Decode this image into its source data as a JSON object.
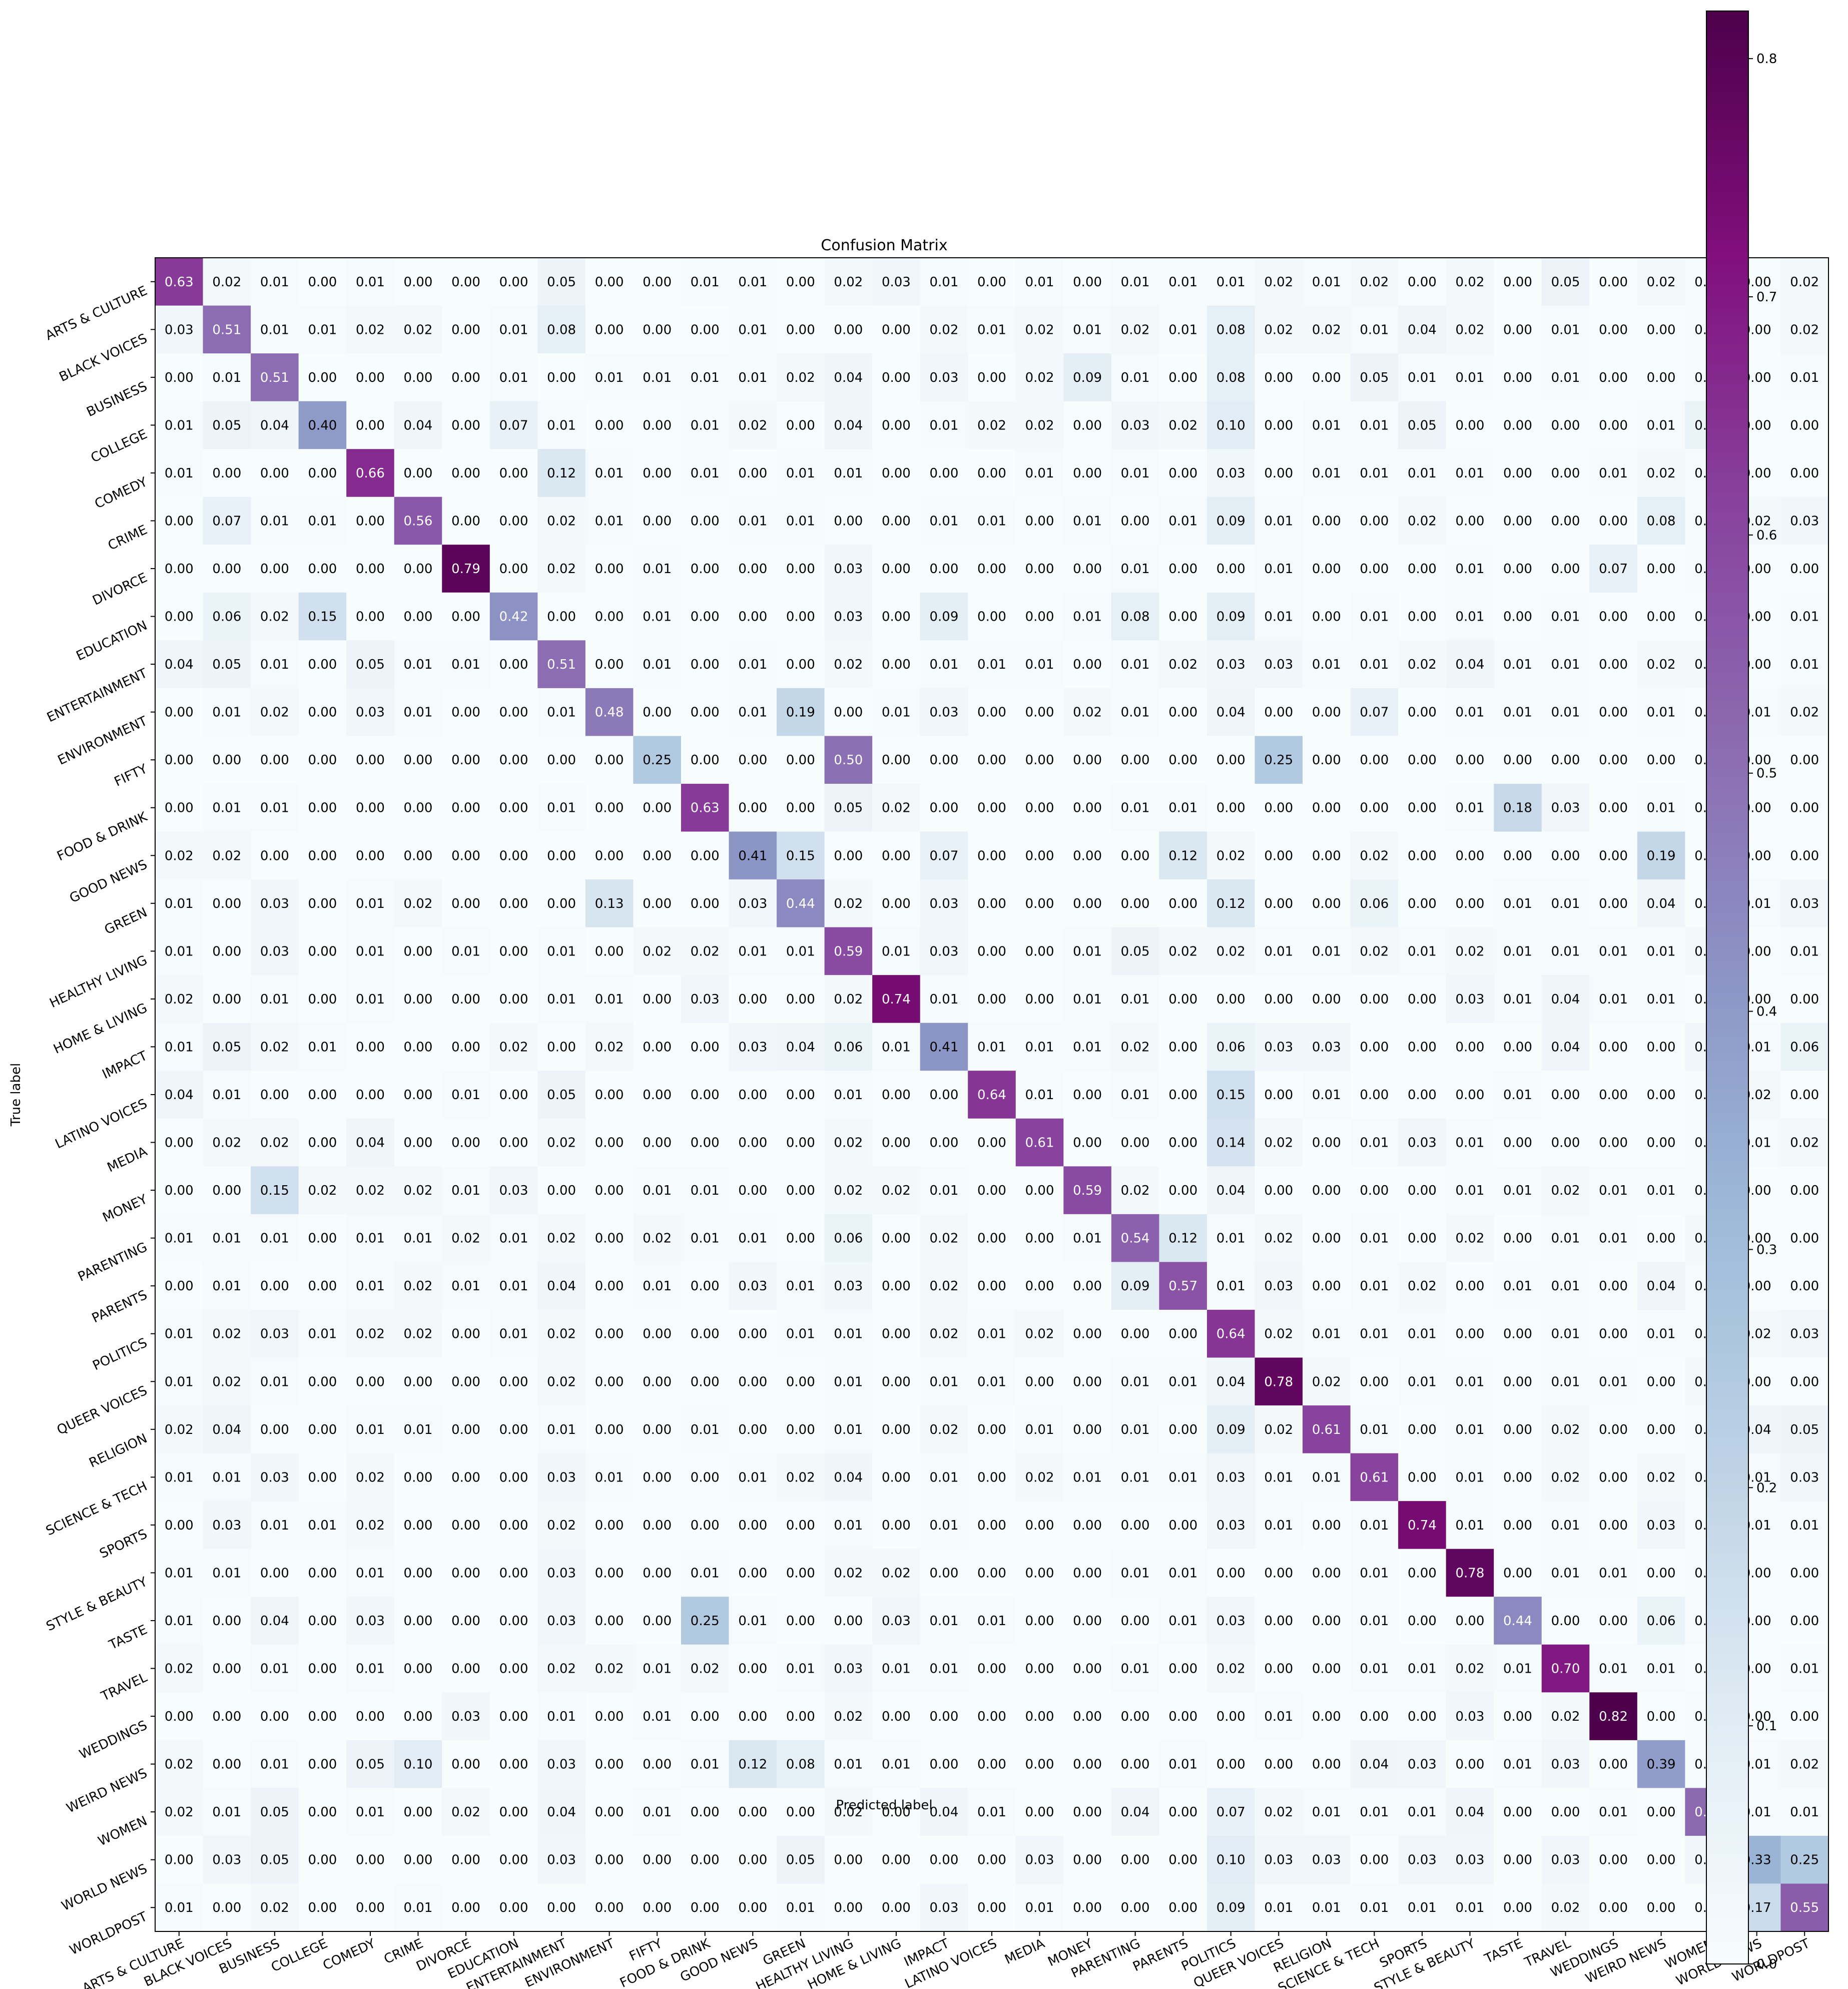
{
  "chart_data": {
    "type": "heatmap",
    "title": "Confusion Matrix",
    "xlabel": "Predicted label",
    "ylabel": "True label",
    "categories": [
      "ARTS & CULTURE",
      "BLACK VOICES",
      "BUSINESS",
      "COLLEGE",
      "COMEDY",
      "CRIME",
      "DIVORCE",
      "EDUCATION",
      "ENTERTAINMENT",
      "ENVIRONMENT",
      "FIFTY",
      "FOOD & DRINK",
      "GOOD NEWS",
      "GREEN",
      "HEALTHY LIVING",
      "HOME & LIVING",
      "IMPACT",
      "LATINO VOICES",
      "MEDIA",
      "MONEY",
      "PARENTING",
      "PARENTS",
      "POLITICS",
      "QUEER VOICES",
      "RELIGION",
      "SCIENCE & TECH",
      "SPORTS",
      "STYLE & BEAUTY",
      "TASTE",
      "TRAVEL",
      "WEDDINGS",
      "WEIRD NEWS",
      "WOMEN",
      "WORLD NEWS",
      "WORLDPOST"
    ],
    "matrix": [
      [
        0.63,
        0.02,
        0.01,
        0.0,
        0.01,
        0.0,
        0.0,
        0.0,
        0.05,
        0.0,
        0.0,
        0.01,
        0.01,
        0.0,
        0.02,
        0.03,
        0.01,
        0.0,
        0.01,
        0.0,
        0.01,
        0.01,
        0.01,
        0.02,
        0.01,
        0.02,
        0.0,
        0.02,
        0.0,
        0.05,
        0.0,
        0.02,
        0.01,
        0.0,
        0.02
      ],
      [
        0.03,
        0.51,
        0.01,
        0.01,
        0.02,
        0.02,
        0.0,
        0.01,
        0.08,
        0.0,
        0.0,
        0.0,
        0.01,
        0.0,
        0.0,
        0.0,
        0.02,
        0.01,
        0.02,
        0.01,
        0.02,
        0.01,
        0.08,
        0.02,
        0.02,
        0.01,
        0.04,
        0.02,
        0.0,
        0.01,
        0.0,
        0.0,
        0.01,
        0.0,
        0.02
      ],
      [
        0.0,
        0.01,
        0.51,
        0.0,
        0.0,
        0.0,
        0.0,
        0.01,
        0.0,
        0.01,
        0.01,
        0.01,
        0.01,
        0.02,
        0.04,
        0.0,
        0.03,
        0.0,
        0.02,
        0.09,
        0.01,
        0.0,
        0.08,
        0.0,
        0.0,
        0.05,
        0.01,
        0.01,
        0.0,
        0.01,
        0.0,
        0.0,
        0.01,
        0.0,
        0.01
      ],
      [
        0.01,
        0.05,
        0.04,
        0.4,
        0.0,
        0.04,
        0.0,
        0.07,
        0.01,
        0.0,
        0.0,
        0.01,
        0.02,
        0.0,
        0.04,
        0.0,
        0.01,
        0.02,
        0.02,
        0.0,
        0.03,
        0.02,
        0.1,
        0.0,
        0.01,
        0.01,
        0.05,
        0.0,
        0.0,
        0.0,
        0.0,
        0.01,
        0.06,
        0.0,
        0.0
      ],
      [
        0.01,
        0.0,
        0.0,
        0.0,
        0.66,
        0.0,
        0.0,
        0.0,
        0.12,
        0.01,
        0.0,
        0.01,
        0.0,
        0.01,
        0.01,
        0.0,
        0.0,
        0.0,
        0.01,
        0.0,
        0.01,
        0.0,
        0.03,
        0.0,
        0.01,
        0.01,
        0.01,
        0.01,
        0.0,
        0.0,
        0.01,
        0.02,
        0.01,
        0.0,
        0.0
      ],
      [
        0.0,
        0.07,
        0.01,
        0.01,
        0.0,
        0.56,
        0.0,
        0.0,
        0.02,
        0.01,
        0.0,
        0.0,
        0.01,
        0.01,
        0.0,
        0.0,
        0.01,
        0.01,
        0.0,
        0.01,
        0.0,
        0.01,
        0.09,
        0.01,
        0.0,
        0.0,
        0.02,
        0.0,
        0.0,
        0.0,
        0.0,
        0.08,
        0.01,
        0.02,
        0.03
      ],
      [
        0.0,
        0.0,
        0.0,
        0.0,
        0.0,
        0.0,
        0.79,
        0.0,
        0.02,
        0.0,
        0.01,
        0.0,
        0.0,
        0.0,
        0.03,
        0.0,
        0.0,
        0.0,
        0.0,
        0.0,
        0.01,
        0.0,
        0.0,
        0.01,
        0.0,
        0.0,
        0.0,
        0.01,
        0.0,
        0.0,
        0.07,
        0.0,
        0.01,
        0.0,
        0.0
      ],
      [
        0.0,
        0.06,
        0.02,
        0.15,
        0.0,
        0.0,
        0.0,
        0.42,
        0.0,
        0.0,
        0.01,
        0.0,
        0.0,
        0.0,
        0.03,
        0.0,
        0.09,
        0.0,
        0.0,
        0.01,
        0.08,
        0.0,
        0.09,
        0.01,
        0.0,
        0.01,
        0.0,
        0.01,
        0.0,
        0.01,
        0.0,
        0.0,
        0.0,
        0.0,
        0.01
      ],
      [
        0.04,
        0.05,
        0.01,
        0.0,
        0.05,
        0.01,
        0.01,
        0.0,
        0.51,
        0.0,
        0.01,
        0.0,
        0.01,
        0.0,
        0.02,
        0.0,
        0.01,
        0.01,
        0.01,
        0.0,
        0.01,
        0.02,
        0.03,
        0.03,
        0.01,
        0.01,
        0.02,
        0.04,
        0.01,
        0.01,
        0.0,
        0.02,
        0.02,
        0.0,
        0.01
      ],
      [
        0.0,
        0.01,
        0.02,
        0.0,
        0.03,
        0.01,
        0.0,
        0.0,
        0.01,
        0.48,
        0.0,
        0.0,
        0.01,
        0.19,
        0.0,
        0.01,
        0.03,
        0.0,
        0.0,
        0.02,
        0.01,
        0.0,
        0.04,
        0.0,
        0.0,
        0.07,
        0.0,
        0.01,
        0.01,
        0.01,
        0.0,
        0.01,
        0.0,
        0.01,
        0.02
      ],
      [
        0.0,
        0.0,
        0.0,
        0.0,
        0.0,
        0.0,
        0.0,
        0.0,
        0.0,
        0.0,
        0.25,
        0.0,
        0.0,
        0.0,
        0.5,
        0.0,
        0.0,
        0.0,
        0.0,
        0.0,
        0.0,
        0.0,
        0.0,
        0.25,
        0.0,
        0.0,
        0.0,
        0.0,
        0.0,
        0.0,
        0.0,
        0.0,
        0.0,
        0.0,
        0.0
      ],
      [
        0.0,
        0.01,
        0.01,
        0.0,
        0.0,
        0.0,
        0.0,
        0.0,
        0.01,
        0.0,
        0.0,
        0.63,
        0.0,
        0.0,
        0.05,
        0.02,
        0.0,
        0.0,
        0.0,
        0.0,
        0.01,
        0.01,
        0.0,
        0.0,
        0.0,
        0.0,
        0.0,
        0.01,
        0.18,
        0.03,
        0.0,
        0.01,
        0.0,
        0.0,
        0.0
      ],
      [
        0.02,
        0.02,
        0.0,
        0.0,
        0.0,
        0.0,
        0.0,
        0.0,
        0.0,
        0.0,
        0.0,
        0.0,
        0.41,
        0.15,
        0.0,
        0.0,
        0.07,
        0.0,
        0.0,
        0.0,
        0.0,
        0.12,
        0.02,
        0.0,
        0.0,
        0.02,
        0.0,
        0.0,
        0.0,
        0.0,
        0.0,
        0.19,
        0.0,
        0.0,
        0.0
      ],
      [
        0.01,
        0.0,
        0.03,
        0.0,
        0.01,
        0.02,
        0.0,
        0.0,
        0.0,
        0.13,
        0.0,
        0.0,
        0.03,
        0.44,
        0.02,
        0.0,
        0.03,
        0.0,
        0.0,
        0.0,
        0.0,
        0.0,
        0.12,
        0.0,
        0.0,
        0.06,
        0.0,
        0.0,
        0.01,
        0.01,
        0.0,
        0.04,
        0.0,
        0.01,
        0.03
      ],
      [
        0.01,
        0.0,
        0.03,
        0.0,
        0.01,
        0.0,
        0.01,
        0.0,
        0.01,
        0.0,
        0.02,
        0.02,
        0.01,
        0.01,
        0.59,
        0.01,
        0.03,
        0.0,
        0.0,
        0.01,
        0.05,
        0.02,
        0.02,
        0.01,
        0.01,
        0.02,
        0.01,
        0.02,
        0.01,
        0.01,
        0.01,
        0.01,
        0.02,
        0.0,
        0.01
      ],
      [
        0.02,
        0.0,
        0.01,
        0.0,
        0.01,
        0.0,
        0.0,
        0.0,
        0.01,
        0.01,
        0.0,
        0.03,
        0.0,
        0.0,
        0.02,
        0.74,
        0.01,
        0.0,
        0.0,
        0.01,
        0.01,
        0.0,
        0.0,
        0.0,
        0.0,
        0.0,
        0.0,
        0.03,
        0.01,
        0.04,
        0.01,
        0.01,
        0.0,
        0.0,
        0.0
      ],
      [
        0.01,
        0.05,
        0.02,
        0.01,
        0.0,
        0.0,
        0.0,
        0.02,
        0.0,
        0.02,
        0.0,
        0.0,
        0.03,
        0.04,
        0.06,
        0.01,
        0.41,
        0.01,
        0.01,
        0.01,
        0.02,
        0.0,
        0.06,
        0.03,
        0.03,
        0.0,
        0.0,
        0.0,
        0.0,
        0.04,
        0.0,
        0.0,
        0.03,
        0.01,
        0.06
      ],
      [
        0.04,
        0.01,
        0.0,
        0.0,
        0.0,
        0.0,
        0.01,
        0.0,
        0.05,
        0.0,
        0.0,
        0.0,
        0.0,
        0.0,
        0.01,
        0.0,
        0.0,
        0.64,
        0.01,
        0.0,
        0.01,
        0.0,
        0.15,
        0.0,
        0.01,
        0.0,
        0.0,
        0.0,
        0.01,
        0.0,
        0.0,
        0.0,
        0.01,
        0.02,
        0.0
      ],
      [
        0.0,
        0.02,
        0.02,
        0.0,
        0.04,
        0.0,
        0.0,
        0.0,
        0.02,
        0.0,
        0.0,
        0.0,
        0.0,
        0.0,
        0.02,
        0.0,
        0.0,
        0.0,
        0.61,
        0.0,
        0.0,
        0.0,
        0.14,
        0.02,
        0.0,
        0.01,
        0.03,
        0.01,
        0.0,
        0.0,
        0.0,
        0.0,
        0.01,
        0.01,
        0.02
      ],
      [
        0.0,
        0.0,
        0.15,
        0.02,
        0.02,
        0.02,
        0.01,
        0.03,
        0.0,
        0.0,
        0.01,
        0.01,
        0.0,
        0.0,
        0.02,
        0.02,
        0.01,
        0.0,
        0.0,
        0.59,
        0.02,
        0.0,
        0.04,
        0.0,
        0.0,
        0.0,
        0.0,
        0.01,
        0.01,
        0.02,
        0.01,
        0.01,
        0.01,
        0.0,
        0.0
      ],
      [
        0.01,
        0.01,
        0.01,
        0.0,
        0.01,
        0.01,
        0.02,
        0.01,
        0.02,
        0.0,
        0.02,
        0.01,
        0.01,
        0.0,
        0.06,
        0.0,
        0.02,
        0.0,
        0.0,
        0.01,
        0.54,
        0.12,
        0.01,
        0.02,
        0.0,
        0.01,
        0.0,
        0.02,
        0.0,
        0.01,
        0.01,
        0.0,
        0.02,
        0.0,
        0.0
      ],
      [
        0.0,
        0.01,
        0.0,
        0.0,
        0.01,
        0.02,
        0.01,
        0.01,
        0.04,
        0.0,
        0.01,
        0.0,
        0.03,
        0.01,
        0.03,
        0.0,
        0.02,
        0.0,
        0.0,
        0.0,
        0.09,
        0.57,
        0.01,
        0.03,
        0.0,
        0.01,
        0.02,
        0.0,
        0.01,
        0.01,
        0.0,
        0.04,
        0.01,
        0.0,
        0.0
      ],
      [
        0.01,
        0.02,
        0.03,
        0.01,
        0.02,
        0.02,
        0.0,
        0.01,
        0.02,
        0.0,
        0.0,
        0.0,
        0.0,
        0.01,
        0.01,
        0.0,
        0.02,
        0.01,
        0.02,
        0.0,
        0.0,
        0.0,
        0.64,
        0.02,
        0.01,
        0.01,
        0.01,
        0.0,
        0.0,
        0.01,
        0.0,
        0.01,
        0.01,
        0.02,
        0.03
      ],
      [
        0.01,
        0.02,
        0.01,
        0.0,
        0.0,
        0.0,
        0.0,
        0.0,
        0.02,
        0.0,
        0.0,
        0.0,
        0.0,
        0.0,
        0.01,
        0.0,
        0.01,
        0.01,
        0.0,
        0.0,
        0.01,
        0.01,
        0.04,
        0.78,
        0.02,
        0.0,
        0.01,
        0.01,
        0.0,
        0.01,
        0.01,
        0.0,
        0.02,
        0.0,
        0.0
      ],
      [
        0.02,
        0.04,
        0.0,
        0.0,
        0.01,
        0.01,
        0.0,
        0.0,
        0.01,
        0.0,
        0.0,
        0.01,
        0.0,
        0.0,
        0.01,
        0.0,
        0.02,
        0.0,
        0.01,
        0.0,
        0.01,
        0.0,
        0.09,
        0.02,
        0.61,
        0.01,
        0.0,
        0.01,
        0.0,
        0.02,
        0.0,
        0.0,
        0.01,
        0.04,
        0.05
      ],
      [
        0.01,
        0.01,
        0.03,
        0.0,
        0.02,
        0.0,
        0.0,
        0.0,
        0.03,
        0.01,
        0.0,
        0.0,
        0.01,
        0.02,
        0.04,
        0.0,
        0.01,
        0.0,
        0.02,
        0.01,
        0.01,
        0.01,
        0.03,
        0.01,
        0.01,
        0.61,
        0.0,
        0.01,
        0.0,
        0.02,
        0.0,
        0.02,
        0.01,
        0.01,
        0.03
      ],
      [
        0.0,
        0.03,
        0.01,
        0.01,
        0.02,
        0.0,
        0.0,
        0.0,
        0.02,
        0.0,
        0.0,
        0.0,
        0.0,
        0.0,
        0.01,
        0.0,
        0.01,
        0.0,
        0.0,
        0.0,
        0.0,
        0.0,
        0.03,
        0.01,
        0.0,
        0.01,
        0.74,
        0.01,
        0.0,
        0.01,
        0.0,
        0.03,
        0.01,
        0.01,
        0.01
      ],
      [
        0.01,
        0.01,
        0.0,
        0.0,
        0.01,
        0.0,
        0.0,
        0.0,
        0.03,
        0.0,
        0.0,
        0.01,
        0.0,
        0.0,
        0.02,
        0.02,
        0.0,
        0.0,
        0.0,
        0.0,
        0.01,
        0.01,
        0.0,
        0.0,
        0.0,
        0.01,
        0.0,
        0.78,
        0.0,
        0.01,
        0.01,
        0.0,
        0.01,
        0.0,
        0.0
      ],
      [
        0.01,
        0.0,
        0.04,
        0.0,
        0.03,
        0.0,
        0.0,
        0.0,
        0.03,
        0.0,
        0.0,
        0.25,
        0.01,
        0.0,
        0.0,
        0.03,
        0.01,
        0.01,
        0.0,
        0.0,
        0.0,
        0.01,
        0.03,
        0.0,
        0.0,
        0.01,
        0.0,
        0.0,
        0.44,
        0.0,
        0.0,
        0.06,
        0.01,
        0.0,
        0.0
      ],
      [
        0.02,
        0.0,
        0.01,
        0.0,
        0.01,
        0.0,
        0.0,
        0.0,
        0.02,
        0.02,
        0.01,
        0.02,
        0.0,
        0.01,
        0.03,
        0.01,
        0.01,
        0.0,
        0.0,
        0.0,
        0.01,
        0.0,
        0.02,
        0.0,
        0.0,
        0.01,
        0.01,
        0.02,
        0.01,
        0.7,
        0.01,
        0.01,
        0.0,
        0.0,
        0.01
      ],
      [
        0.0,
        0.0,
        0.0,
        0.0,
        0.0,
        0.0,
        0.03,
        0.0,
        0.01,
        0.0,
        0.01,
        0.0,
        0.0,
        0.0,
        0.02,
        0.0,
        0.0,
        0.0,
        0.0,
        0.0,
        0.0,
        0.0,
        0.0,
        0.01,
        0.0,
        0.0,
        0.0,
        0.03,
        0.0,
        0.02,
        0.82,
        0.0,
        0.01,
        0.0,
        0.0
      ],
      [
        0.02,
        0.0,
        0.01,
        0.0,
        0.05,
        0.1,
        0.0,
        0.0,
        0.03,
        0.0,
        0.0,
        0.01,
        0.12,
        0.08,
        0.01,
        0.01,
        0.0,
        0.0,
        0.0,
        0.0,
        0.0,
        0.01,
        0.0,
        0.0,
        0.0,
        0.04,
        0.03,
        0.0,
        0.01,
        0.03,
        0.0,
        0.39,
        0.01,
        0.01,
        0.02
      ],
      [
        0.02,
        0.01,
        0.05,
        0.0,
        0.01,
        0.0,
        0.02,
        0.0,
        0.04,
        0.0,
        0.01,
        0.0,
        0.0,
        0.0,
        0.02,
        0.0,
        0.04,
        0.01,
        0.0,
        0.0,
        0.04,
        0.0,
        0.07,
        0.02,
        0.01,
        0.01,
        0.01,
        0.04,
        0.0,
        0.0,
        0.01,
        0.0,
        0.52,
        0.01,
        0.01
      ],
      [
        0.0,
        0.03,
        0.05,
        0.0,
        0.0,
        0.0,
        0.0,
        0.0,
        0.03,
        0.0,
        0.0,
        0.0,
        0.0,
        0.05,
        0.0,
        0.0,
        0.0,
        0.0,
        0.03,
        0.0,
        0.0,
        0.0,
        0.1,
        0.03,
        0.03,
        0.0,
        0.03,
        0.03,
        0.0,
        0.03,
        0.0,
        0.0,
        0.03,
        0.33,
        0.25
      ],
      [
        0.01,
        0.0,
        0.02,
        0.0,
        0.0,
        0.01,
        0.0,
        0.0,
        0.0,
        0.0,
        0.0,
        0.0,
        0.0,
        0.01,
        0.0,
        0.0,
        0.03,
        0.0,
        0.01,
        0.0,
        0.0,
        0.0,
        0.09,
        0.01,
        0.01,
        0.01,
        0.01,
        0.01,
        0.0,
        0.02,
        0.0,
        0.0,
        0.0,
        0.17,
        0.55
      ]
    ],
    "colorbar": {
      "colormap": "BuPu",
      "range": [
        0.0,
        0.82
      ],
      "ticks": [
        0.0,
        0.1,
        0.2,
        0.3,
        0.4,
        0.5,
        0.6,
        0.7,
        0.8
      ],
      "tick_labels": [
        "0.0",
        "0.1",
        "0.2",
        "0.3",
        "0.4",
        "0.5",
        "0.6",
        "0.7",
        "0.8"
      ]
    },
    "cell_text_colors": {
      "dark_cell": "#ffffff",
      "light_cell": "#000000"
    },
    "text_threshold": 0.41,
    "grid": false
  }
}
